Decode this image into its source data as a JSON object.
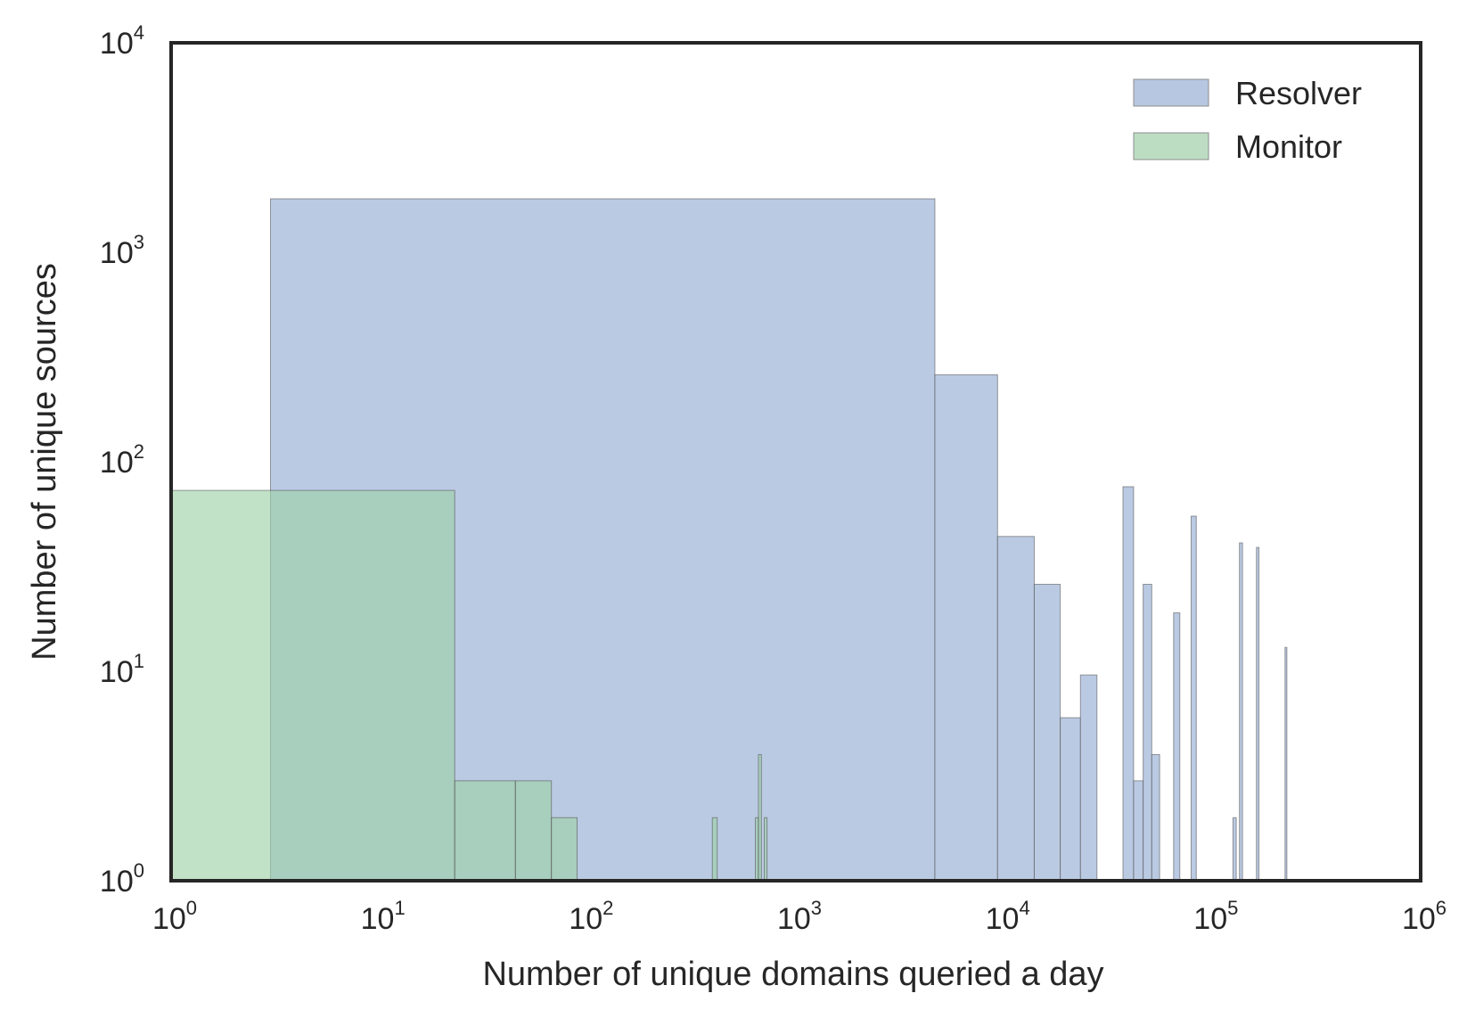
{
  "chart_data": {
    "type": "bar",
    "xlabel": "Number of unique domains queried a day",
    "ylabel": "Number of unique sources",
    "x_scale": "log",
    "y_scale": "log",
    "xlim": [
      1,
      1000000
    ],
    "ylim": [
      1,
      10000
    ],
    "x_ticks": [
      {
        "base": "10",
        "exp": "0",
        "value": 1
      },
      {
        "base": "10",
        "exp": "1",
        "value": 10
      },
      {
        "base": "10",
        "exp": "2",
        "value": 100
      },
      {
        "base": "10",
        "exp": "3",
        "value": 1000
      },
      {
        "base": "10",
        "exp": "4",
        "value": 10000
      },
      {
        "base": "10",
        "exp": "5",
        "value": 100000
      },
      {
        "base": "10",
        "exp": "6",
        "value": 1000000
      }
    ],
    "y_ticks": [
      {
        "base": "10",
        "exp": "0",
        "value": 1
      },
      {
        "base": "10",
        "exp": "1",
        "value": 10
      },
      {
        "base": "10",
        "exp": "2",
        "value": 100
      },
      {
        "base": "10",
        "exp": "3",
        "value": 1000
      },
      {
        "base": "10",
        "exp": "4",
        "value": 10000
      }
    ],
    "grid": false,
    "legend_position": "top-right",
    "series": [
      {
        "name": "Resolver",
        "color": "#b7c7e1",
        "bins": [
          {
            "x0": 3,
            "x1": 4650,
            "y": 1800
          },
          {
            "x0": 4650,
            "x1": 9300,
            "y": 260
          },
          {
            "x0": 9300,
            "x1": 13950,
            "y": 44
          },
          {
            "x0": 13950,
            "x1": 18600,
            "y": 26
          },
          {
            "x0": 18600,
            "x1": 23250,
            "y": 6
          },
          {
            "x0": 23250,
            "x1": 27900,
            "y": 9.6
          },
          {
            "x0": 37200,
            "x1": 41850,
            "y": 76
          },
          {
            "x0": 41850,
            "x1": 46500,
            "y": 3
          },
          {
            "x0": 46500,
            "x1": 51150,
            "y": 26
          },
          {
            "x0": 51150,
            "x1": 55800,
            "y": 4
          },
          {
            "x0": 65100,
            "x1": 69750,
            "y": 19
          },
          {
            "x0": 79050,
            "x1": 83700,
            "y": 55
          },
          {
            "x0": 125550,
            "x1": 130200,
            "y": 2
          },
          {
            "x0": 134850,
            "x1": 139500,
            "y": 41
          },
          {
            "x0": 162750,
            "x1": 167400,
            "y": 39
          },
          {
            "x0": 223200,
            "x1": 227850,
            "y": 13
          }
        ]
      },
      {
        "name": "Monitor",
        "color": "#9dd0a6",
        "bins": [
          {
            "x0": 1,
            "x1": 23,
            "y": 73
          },
          {
            "x0": 23,
            "x1": 45,
            "y": 3
          },
          {
            "x0": 45,
            "x1": 67,
            "y": 3
          },
          {
            "x0": 67,
            "x1": 89,
            "y": 2
          },
          {
            "x0": 397,
            "x1": 419,
            "y": 2
          },
          {
            "x0": 639,
            "x1": 661,
            "y": 2
          },
          {
            "x0": 661,
            "x1": 683,
            "y": 4
          },
          {
            "x0": 705,
            "x1": 727,
            "y": 2
          }
        ]
      }
    ]
  }
}
